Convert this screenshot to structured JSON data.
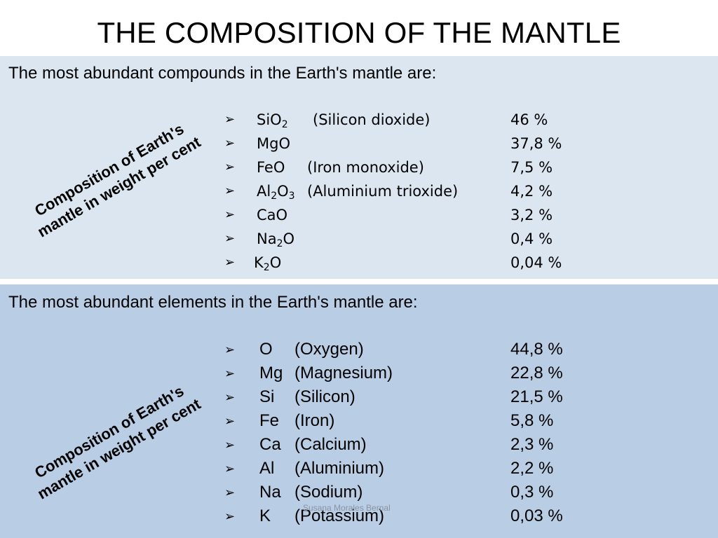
{
  "title": "THE COMPOSITION OF THE MANTLE",
  "compounds": {
    "intro": "The most abundant compounds in the Earth's mantle are:",
    "side_label": [
      "Composition   of   Earth's",
      "mantle in weight per cent"
    ],
    "items": [
      {
        "formula_parts": [
          "SiO",
          "2",
          ""
        ],
        "name": "(Silicon dioxide)",
        "percent": "46 %"
      },
      {
        "formula_parts": [
          "MgO",
          "",
          ""
        ],
        "name": "",
        "percent": "37,8 %"
      },
      {
        "formula_parts": [
          "FeO",
          "",
          ""
        ],
        "name": "(Iron monoxide)",
        "percent": "7,5 %"
      },
      {
        "formula_parts": [
          "Al",
          "2",
          "O",
          "3"
        ],
        "name": "(Aluminium trioxide)",
        "percent": "4,2 %"
      },
      {
        "formula_parts": [
          "CaO",
          "",
          ""
        ],
        "name": "",
        "percent": "3,2 %"
      },
      {
        "formula_parts": [
          "Na",
          "2",
          "O"
        ],
        "name": "",
        "percent": "0,4 %"
      },
      {
        "formula_parts": [
          "K",
          "2",
          "O"
        ],
        "name": "",
        "percent": "0,04 %"
      }
    ]
  },
  "elements": {
    "intro": "The most abundant elements in the Earth's mantle are:",
    "side_label": [
      "Composition   of   Earth's",
      "mantle in weight per cent"
    ],
    "items": [
      {
        "symbol": "O",
        "name": "(Oxygen)",
        "percent": "44,8 %"
      },
      {
        "symbol": "Mg",
        "name": "(Magnesium)",
        "percent": "22,8 %"
      },
      {
        "symbol": "Si",
        "name": "(Silicon)",
        "percent": "21,5 %"
      },
      {
        "symbol": "Fe",
        "name": "(Iron)",
        "percent": "5,8 %"
      },
      {
        "symbol": "Ca",
        "name": "(Calcium)",
        "percent": "2,3 %"
      },
      {
        "symbol": "Al",
        "name": "(Aluminium)",
        "percent": "2,2 %"
      },
      {
        "symbol": "Na",
        "name": "(Sodium)",
        "percent": "0,3 %"
      },
      {
        "symbol": "K",
        "name": "(Potassium)",
        "percent": "0,03 %"
      }
    ]
  },
  "bullet_glyph": "➢",
  "watermark": "Susana Morales Bernal",
  "colors": {
    "panel_top": "#dce6f1",
    "panel_bottom": "#b9cde5"
  }
}
